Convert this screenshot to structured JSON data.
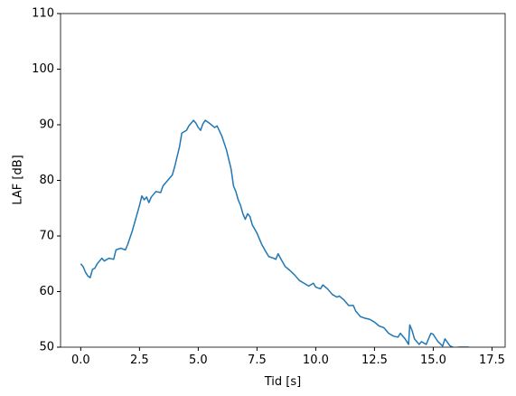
{
  "chart_data": {
    "type": "line",
    "xlabel": "Tid [s]",
    "ylabel": "LAF [dB]",
    "color": "#1f77b4",
    "grid": false,
    "xlim": [
      -0.86,
      18.06
    ],
    "ylim": [
      50,
      110
    ],
    "xticks": [
      {
        "value": 0,
        "label": "0.0"
      },
      2.5,
      {
        "value": 5,
        "label": "5.0"
      },
      7.5,
      {
        "value": 10,
        "label": "10.0"
      },
      12.5,
      {
        "value": 15,
        "label": "15.0"
      },
      17.5
    ],
    "yticks": [
      50,
      60,
      70,
      80,
      90,
      100,
      110
    ],
    "x": [
      0.0,
      0.1,
      0.2,
      0.3,
      0.4,
      0.5,
      0.6,
      0.7,
      0.8,
      0.9,
      1.0,
      1.2,
      1.4,
      1.5,
      1.7,
      1.9,
      2.0,
      2.2,
      2.4,
      2.5,
      2.6,
      2.7,
      2.8,
      2.9,
      3.0,
      3.2,
      3.4,
      3.5,
      3.7,
      3.9,
      4.0,
      4.2,
      4.3,
      4.5,
      4.6,
      4.8,
      4.9,
      5.0,
      5.1,
      5.2,
      5.3,
      5.5,
      5.7,
      5.8,
      6.0,
      6.2,
      6.4,
      6.5,
      6.6,
      6.7,
      6.8,
      6.9,
      7.0,
      7.1,
      7.2,
      7.3,
      7.5,
      7.7,
      7.9,
      8.0,
      8.2,
      8.3,
      8.4,
      8.5,
      8.7,
      8.9,
      9.1,
      9.3,
      9.5,
      9.7,
      9.9,
      10.0,
      10.2,
      10.3,
      10.5,
      10.7,
      10.9,
      11.0,
      11.2,
      11.4,
      11.6,
      11.7,
      11.9,
      12.1,
      12.3,
      12.5,
      12.7,
      12.9,
      13.1,
      13.3,
      13.5,
      13.6,
      13.8,
      13.95,
      14.0,
      14.1,
      14.2,
      14.4,
      14.5,
      14.7,
      14.9,
      15.0,
      15.2,
      15.4,
      15.5,
      15.7,
      15.9,
      16.1,
      16.5,
      16.6
    ],
    "values": [
      65,
      64.5,
      63.5,
      62.8,
      62.5,
      64,
      64.2,
      65,
      65.5,
      66,
      65.5,
      66,
      65.8,
      67.5,
      67.8,
      67.5,
      68.5,
      71,
      74,
      75.5,
      77.2,
      76.5,
      77,
      76,
      77,
      78,
      77.8,
      79,
      80,
      81,
      82.5,
      86,
      88.5,
      89,
      89.8,
      90.8,
      90.3,
      89.5,
      89,
      90.2,
      90.8,
      90.2,
      89.5,
      89.8,
      88,
      85.5,
      82,
      79,
      78,
      76.5,
      75.5,
      74,
      73,
      74,
      73.5,
      72,
      70.5,
      68.5,
      67,
      66.3,
      66,
      65.8,
      66.8,
      66,
      64.5,
      63.8,
      63,
      62,
      61.5,
      61,
      61.5,
      60.8,
      60.5,
      61.2,
      60.5,
      59.5,
      59,
      59.2,
      58.5,
      57.5,
      57.5,
      56.5,
      55.5,
      55.2,
      55,
      54.5,
      53.8,
      53.5,
      52.5,
      52,
      51.8,
      52.5,
      51.5,
      50.5,
      54,
      53,
      51.5,
      50.5,
      51,
      50.5,
      52.5,
      52.3,
      51,
      50.2,
      51.5,
      50.3,
      49.8,
      50,
      50,
      49.5
    ]
  }
}
